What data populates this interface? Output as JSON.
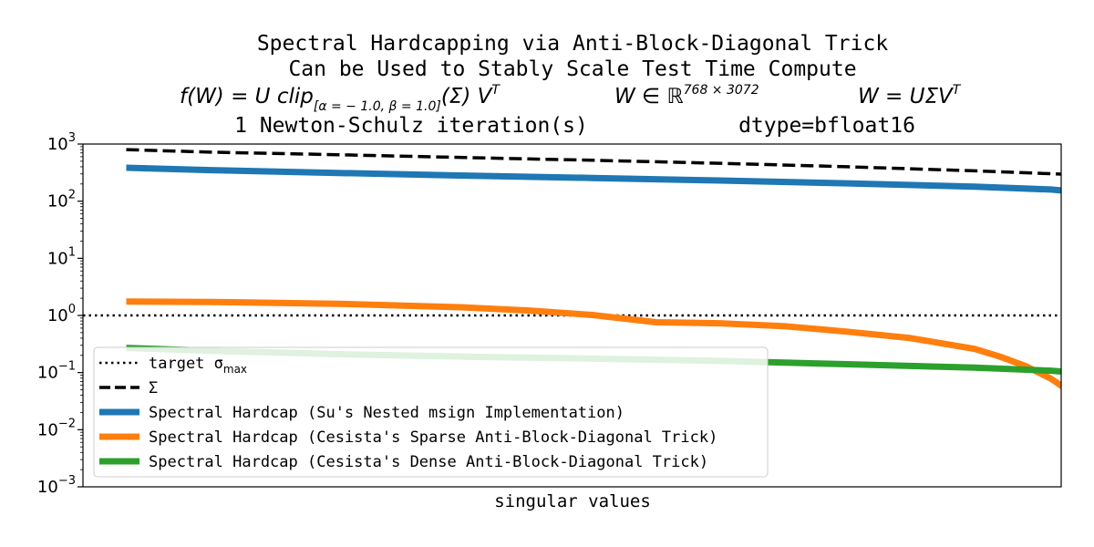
{
  "chart_data": {
    "type": "line",
    "title_lines": [
      "Spectral Hardcapping via Anti-Block-Diagonal Trick",
      "Can be Used to Stably Scale Test Time Compute"
    ],
    "formula": {
      "f_lhs": "f(W) = U clip",
      "f_sub": "[α = − 1.0, β = 1.0]",
      "f_rhs": "(Σ) V",
      "f_sup": "T",
      "w_lhs": "W ∈ ℝ",
      "w_sup": "768 × 3072",
      "svd_lhs": "W = UΣV",
      "svd_sup": "T"
    },
    "subtitle_left": "1 Newton-Schulz iteration(s)",
    "subtitle_right": "dtype=bfloat16",
    "xlabel": "singular values",
    "ylabel": "",
    "yscale": "log",
    "ylim": [
      0.001,
      1000
    ],
    "xlim": [
      0,
      768
    ],
    "grid": false,
    "legend_placement": "lower-left",
    "y_ticks": [
      {
        "value": 1000,
        "base": "10",
        "exp": "3"
      },
      {
        "value": 100,
        "base": "10",
        "exp": "2"
      },
      {
        "value": 10,
        "base": "10",
        "exp": "1"
      },
      {
        "value": 1,
        "base": "10",
        "exp": "0"
      },
      {
        "value": 0.1,
        "base": "10",
        "exp": "−1"
      },
      {
        "value": 0.01,
        "base": "10",
        "exp": "−2"
      },
      {
        "value": 0.001,
        "base": "10",
        "exp": "−3"
      }
    ],
    "series": [
      {
        "name": "target σ",
        "name_sub": "max",
        "style": "dotted",
        "color": "#000000",
        "x": [
          0,
          768
        ],
        "y": [
          1.0,
          1.0
        ]
      },
      {
        "name": "Σ",
        "style": "dashed",
        "color": "#000000",
        "x": [
          34,
          100,
          200,
          300,
          400,
          500,
          600,
          700,
          798
        ],
        "y": [
          800,
          720,
          650,
          580,
          520,
          460,
          400,
          340,
          280
        ]
      },
      {
        "name": "Spectral Hardcap (Su's Nested msign Implementation)",
        "style": "solid",
        "color": "#1f77b4",
        "x": [
          34,
          100,
          200,
          300,
          400,
          500,
          600,
          700,
          760,
          798
        ],
        "y": [
          385,
          350,
          312,
          280,
          255,
          230,
          205,
          180,
          160,
          135
        ]
      },
      {
        "name": "Spectral Hardcap (Cesista's Sparse Anti-Block-Diagonal Trick)",
        "style": "solid",
        "color": "#ff7f0e",
        "x": [
          34,
          100,
          200,
          300,
          350,
          400,
          450,
          500,
          550,
          600,
          650,
          700,
          720,
          740,
          760,
          770,
          780,
          785,
          790,
          795,
          798
        ],
        "y": [
          1.75,
          1.72,
          1.6,
          1.38,
          1.22,
          1.02,
          0.76,
          0.73,
          0.65,
          0.52,
          0.4,
          0.26,
          0.19,
          0.13,
          0.078,
          0.055,
          0.032,
          0.022,
          0.014,
          0.008,
          0.004
        ]
      },
      {
        "name": "Spectral Hardcap (Cesista's Dense Anti-Block-Diagonal Trick)",
        "style": "solid",
        "color": "#2ca02c",
        "x": [
          34,
          100,
          200,
          300,
          400,
          500,
          600,
          700,
          760,
          798
        ],
        "y": [
          0.27,
          0.24,
          0.21,
          0.19,
          0.175,
          0.16,
          0.14,
          0.122,
          0.108,
          0.092
        ]
      }
    ]
  }
}
